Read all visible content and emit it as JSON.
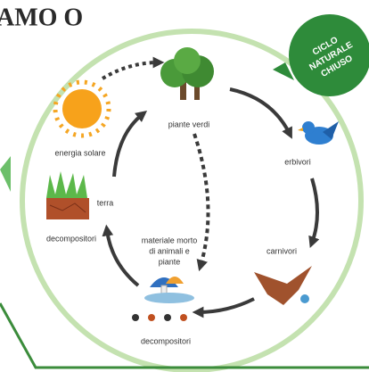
{
  "header": {
    "title": "AMO O"
  },
  "badge": {
    "lines": [
      "CICLO",
      "NATURALE",
      "CHIUSO"
    ]
  },
  "nodes": [
    {
      "label": [
        "energia solare"
      ]
    },
    {
      "label": [
        "piante verdi"
      ]
    },
    {
      "label": [
        "erbivori"
      ]
    },
    {
      "label": [
        "carnivori"
      ]
    },
    {
      "label": [
        "decompositori"
      ]
    },
    {
      "label": [
        "materiale morto",
        "di animali e",
        "piante"
      ]
    },
    {
      "label": [
        "terra"
      ]
    },
    {
      "label": [
        "decompositori"
      ]
    }
  ]
}
